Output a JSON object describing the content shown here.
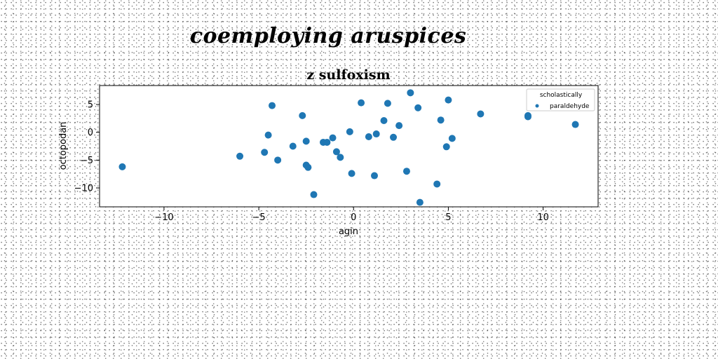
{
  "page": {
    "suptitle": "coemploying aruspices"
  },
  "chart_data": {
    "type": "scatter",
    "title": "z sulfoxism",
    "xlabel": "agin",
    "ylabel": "octopodan",
    "xlim": [
      -13.4,
      12.9
    ],
    "ylim": [
      -13.4,
      8.4
    ],
    "xticks": [
      -10,
      -5,
      0,
      5,
      10
    ],
    "yticks": [
      5,
      0,
      -5,
      -10
    ],
    "grid": false,
    "legend": {
      "placement": "top-right",
      "title": "scholastically",
      "entries": [
        "paraldehyde"
      ]
    },
    "colors": {
      "series": "#1f77b4",
      "axes": "#000000"
    },
    "series": [
      {
        "name": "paraldehyde",
        "points": [
          [
            -12.2,
            -6.2
          ],
          [
            -6.0,
            -4.3
          ],
          [
            -4.7,
            -3.6
          ],
          [
            -4.5,
            -0.5
          ],
          [
            -4.3,
            4.8
          ],
          [
            -4.0,
            -5.0
          ],
          [
            -3.2,
            -2.5
          ],
          [
            -2.7,
            3.0
          ],
          [
            -2.5,
            -1.6
          ],
          [
            -2.5,
            -5.9
          ],
          [
            -2.4,
            -6.3
          ],
          [
            -2.1,
            -11.2
          ],
          [
            -1.6,
            -1.8
          ],
          [
            -1.4,
            -1.8
          ],
          [
            -1.1,
            -1.0
          ],
          [
            -0.9,
            -3.5
          ],
          [
            -0.7,
            -4.5
          ],
          [
            -0.2,
            0.1
          ],
          [
            -0.1,
            -7.4
          ],
          [
            0.4,
            5.3
          ],
          [
            0.8,
            -0.8
          ],
          [
            1.1,
            -7.8
          ],
          [
            1.2,
            -0.3
          ],
          [
            1.6,
            2.1
          ],
          [
            1.8,
            5.2
          ],
          [
            2.1,
            -0.9
          ],
          [
            2.4,
            1.2
          ],
          [
            2.8,
            -7.0
          ],
          [
            3.0,
            7.1
          ],
          [
            3.4,
            4.4
          ],
          [
            3.5,
            -12.6
          ],
          [
            4.4,
            -9.3
          ],
          [
            4.6,
            2.2
          ],
          [
            4.9,
            -2.6
          ],
          [
            5.0,
            5.8
          ],
          [
            5.2,
            -1.1
          ],
          [
            6.7,
            3.3
          ],
          [
            9.2,
            3.0
          ],
          [
            9.2,
            2.8
          ],
          [
            11.7,
            1.4
          ]
        ]
      }
    ]
  }
}
